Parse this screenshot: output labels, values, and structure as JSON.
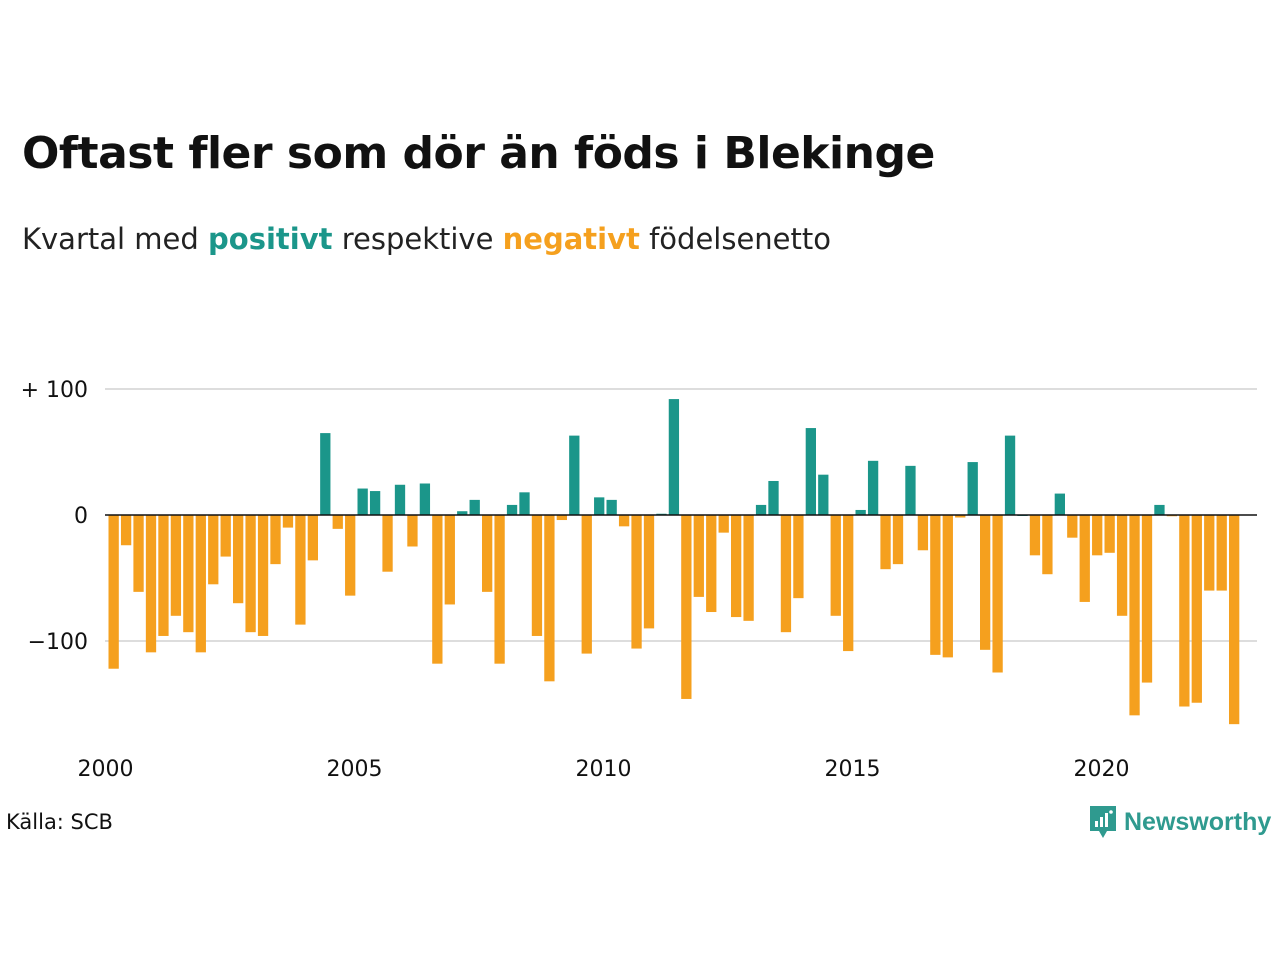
{
  "title": "Oftast fler som dör än föds i Blekinge",
  "subtitle": {
    "prefix": "Kvartal med ",
    "positive_word": "positivt",
    "middle": " respektive ",
    "negative_word": "negativt",
    "suffix": " födelsenetto"
  },
  "source": "Källa: SCB",
  "brand": {
    "name": "Newsworthy",
    "icon": "newsworthy-logo-icon"
  },
  "colors": {
    "positive": "#1b968a",
    "negative": "#f5a01e",
    "grid": "#dddddd",
    "zero_line": "#111111"
  },
  "chart_data": {
    "type": "bar",
    "title": "Oftast fler som dör än föds i Blekinge",
    "xlabel": "",
    "ylabel": "",
    "ylim": [
      -175,
      100
    ],
    "y_ticks": [
      {
        "value": 100,
        "label": "+ 100"
      },
      {
        "value": 0,
        "label": "0"
      },
      {
        "value": -100,
        "label": "−100"
      }
    ],
    "x_ticks": [
      "2000",
      "2005",
      "2010",
      "2015",
      "2020"
    ],
    "grid": true,
    "series": [
      {
        "name": "Födelsenetto per kvartal",
        "start": "2000 Q1",
        "values": [
          -122,
          -24,
          -61,
          -109,
          -96,
          -80,
          -93,
          -109,
          -55,
          -33,
          -70,
          -93,
          -96,
          -39,
          -10,
          -87,
          -36,
          65,
          -11,
          -64,
          21,
          19,
          -45,
          24,
          -25,
          25,
          -118,
          -71,
          3,
          12,
          -61,
          -118,
          8,
          18,
          -96,
          -132,
          -4,
          63,
          -110,
          14,
          12,
          -9,
          -106,
          -90,
          1,
          92,
          -146,
          -65,
          -77,
          -14,
          -81,
          -84,
          8,
          27,
          -93,
          -66,
          69,
          32,
          -80,
          -108,
          4,
          43,
          -43,
          -39,
          39,
          -28,
          -111,
          -113,
          -2,
          42,
          -107,
          -125,
          63,
          0,
          -32,
          -47,
          17,
          -18,
          -69,
          -32,
          -30,
          -80,
          -159,
          -133,
          8,
          -1,
          -152,
          -149,
          -60,
          -60,
          -166
        ]
      }
    ]
  }
}
